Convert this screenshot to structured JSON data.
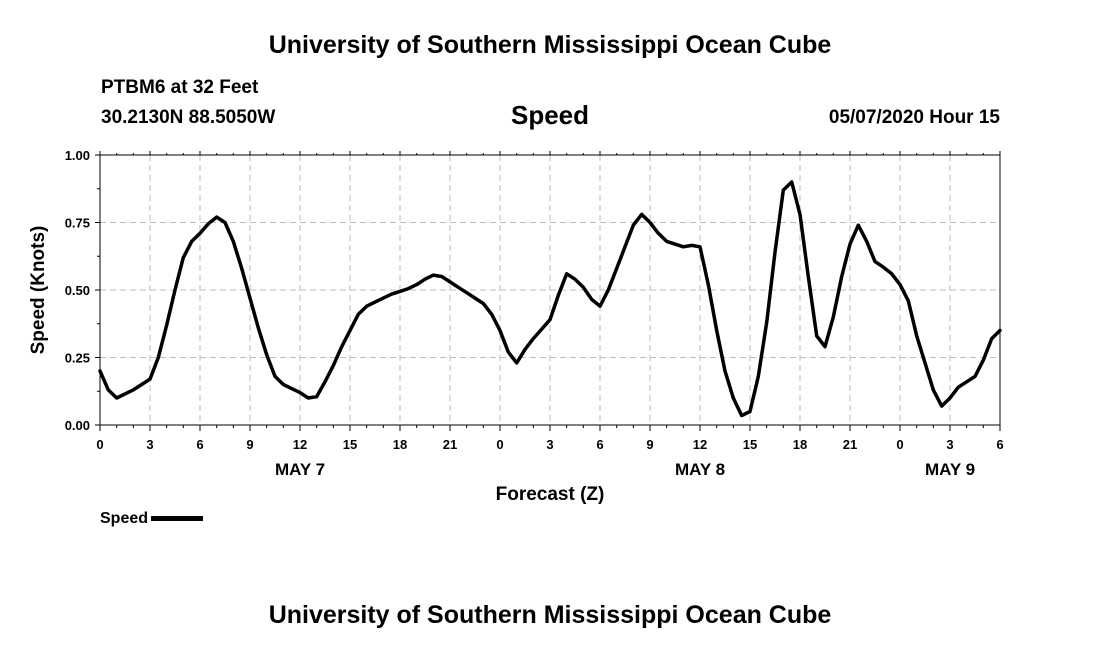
{
  "header": {
    "title_top": "University of Southern Mississippi Ocean Cube",
    "station": "PTBM6 at 32 Feet",
    "coords": "30.2130N 88.5050W",
    "chart_title": "Speed",
    "datetime": "05/07/2020 Hour 15"
  },
  "footer": {
    "title_bottom": "University of Southern Mississippi Ocean Cube"
  },
  "legend": {
    "label": "Speed"
  },
  "chart_data": {
    "type": "line",
    "title": "Speed",
    "xlabel": "Forecast (Z)",
    "ylabel": "Speed (Knots)",
    "xlim": [
      0,
      54
    ],
    "ylim": [
      0,
      1
    ],
    "yticks": [
      "0.00",
      "0.25",
      "0.50",
      "0.75",
      "1.00"
    ],
    "xticks": [
      "0",
      "3",
      "6",
      "9",
      "12",
      "15",
      "18",
      "21",
      "0",
      "3",
      "6",
      "9",
      "12",
      "15",
      "18",
      "21",
      "0",
      "3",
      "6"
    ],
    "date_labels": [
      {
        "label": "MAY 7",
        "x": 12
      },
      {
        "label": "MAY 8",
        "x": 36
      },
      {
        "label": "MAY 9",
        "x": 51
      }
    ],
    "grid": true,
    "series": [
      {
        "name": "Speed",
        "color": "#000000",
        "x": [
          0,
          0.5,
          1,
          1.5,
          2,
          2.5,
          3,
          3.5,
          4,
          4.5,
          5,
          5.5,
          6,
          6.5,
          7,
          7.5,
          8,
          8.5,
          9,
          9.5,
          10,
          10.5,
          11,
          11.5,
          12,
          12.5,
          13,
          13.5,
          14,
          14.5,
          15,
          15.5,
          16,
          16.5,
          17,
          17.5,
          18,
          18.5,
          19,
          19.5,
          20,
          20.5,
          21,
          21.5,
          22,
          22.5,
          23,
          23.5,
          24,
          24.5,
          25,
          25.5,
          26,
          26.5,
          27,
          27.5,
          28,
          28.5,
          29,
          29.5,
          30,
          30.5,
          31,
          31.5,
          32,
          32.5,
          33,
          33.5,
          34,
          34.5,
          35,
          35.5,
          36,
          36.5,
          37,
          37.5,
          38,
          38.5,
          39,
          39.5,
          40,
          40.5,
          41,
          41.5,
          42,
          42.5,
          43,
          43.5,
          44,
          44.5,
          45,
          45.5,
          46,
          46.5,
          47,
          47.5,
          48,
          48.5,
          49,
          49.5,
          50,
          50.5,
          51,
          51.5,
          52,
          52.5,
          53,
          53.5,
          54
        ],
        "y": [
          0.2,
          0.13,
          0.1,
          0.115,
          0.13,
          0.15,
          0.17,
          0.25,
          0.37,
          0.5,
          0.62,
          0.68,
          0.71,
          0.745,
          0.77,
          0.75,
          0.68,
          0.58,
          0.47,
          0.36,
          0.26,
          0.18,
          0.15,
          0.135,
          0.12,
          0.1,
          0.105,
          0.16,
          0.22,
          0.29,
          0.35,
          0.41,
          0.44,
          0.455,
          0.47,
          0.485,
          0.495,
          0.505,
          0.52,
          0.54,
          0.555,
          0.55,
          0.53,
          0.51,
          0.49,
          0.47,
          0.45,
          0.41,
          0.35,
          0.27,
          0.23,
          0.28,
          0.32,
          0.355,
          0.39,
          0.48,
          0.56,
          0.54,
          0.51,
          0.465,
          0.44,
          0.5,
          0.58,
          0.66,
          0.74,
          0.78,
          0.75,
          0.71,
          0.68,
          0.67,
          0.66,
          0.665,
          0.66,
          0.52,
          0.35,
          0.2,
          0.1,
          0.035,
          0.05,
          0.18,
          0.38,
          0.64,
          0.87,
          0.9,
          0.78,
          0.55,
          0.33,
          0.29,
          0.4,
          0.55,
          0.67,
          0.74,
          0.68,
          0.605,
          0.585,
          0.56,
          0.52,
          0.46,
          0.33,
          0.23,
          0.13,
          0.07,
          0.1,
          0.14,
          0.16,
          0.18,
          0.24,
          0.32,
          0.35
        ]
      }
    ]
  }
}
